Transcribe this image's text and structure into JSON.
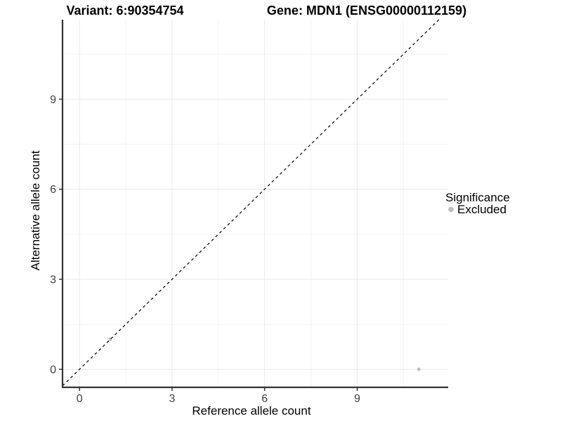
{
  "plot": {
    "title_left": "Variant: 6:90354754",
    "title_right": "Gene: MDN1 (ENSG00000112159)"
  },
  "axes": {
    "x": {
      "label": "Reference allele count",
      "tick_labels": [
        "0",
        "3",
        "6",
        "9"
      ]
    },
    "y": {
      "label": "Alternative allele count",
      "tick_labels": [
        "0",
        "3",
        "6",
        "9"
      ]
    }
  },
  "legend": {
    "title": "Significance",
    "items": [
      {
        "label": "Excluded",
        "marker": "circle",
        "color": "#bebebe"
      }
    ]
  },
  "chart_data": {
    "type": "scatter",
    "title": "Variant: 6:90354754 | Gene: MDN1 (ENSG00000112159)",
    "xlabel": "Reference allele count",
    "ylabel": "Alternative allele count",
    "xlim": [
      -0.55,
      11.95
    ],
    "ylim": [
      -0.6,
      11.65
    ],
    "x_major_ticks": [
      0,
      3,
      6,
      9
    ],
    "y_major_ticks": [
      0,
      3,
      6,
      9
    ],
    "x_minor_gridlines": [
      1.5,
      4.5,
      7.5,
      10.5
    ],
    "y_minor_gridlines": [
      1.5,
      4.5,
      7.5,
      10.5
    ],
    "grid": "major+minor",
    "legend_position": "right",
    "series": [
      {
        "name": "Excluded",
        "color": "#bebebe",
        "points": [
          {
            "x": 1,
            "y": 1
          },
          {
            "x": 11,
            "y": 0
          }
        ]
      }
    ],
    "reference_line": {
      "kind": "identity y=x",
      "style": "dashed",
      "color": "#000000"
    }
  },
  "colors": {
    "background": "#ffffff",
    "axis_line": "#333333",
    "tick_mark": "#333333",
    "tick_label": "#404040",
    "grid_major": "#e9e9e9",
    "grid_minor": "#f4f4f4",
    "point": "#bebebe",
    "reference_line": "#000000",
    "text": "#000000"
  }
}
